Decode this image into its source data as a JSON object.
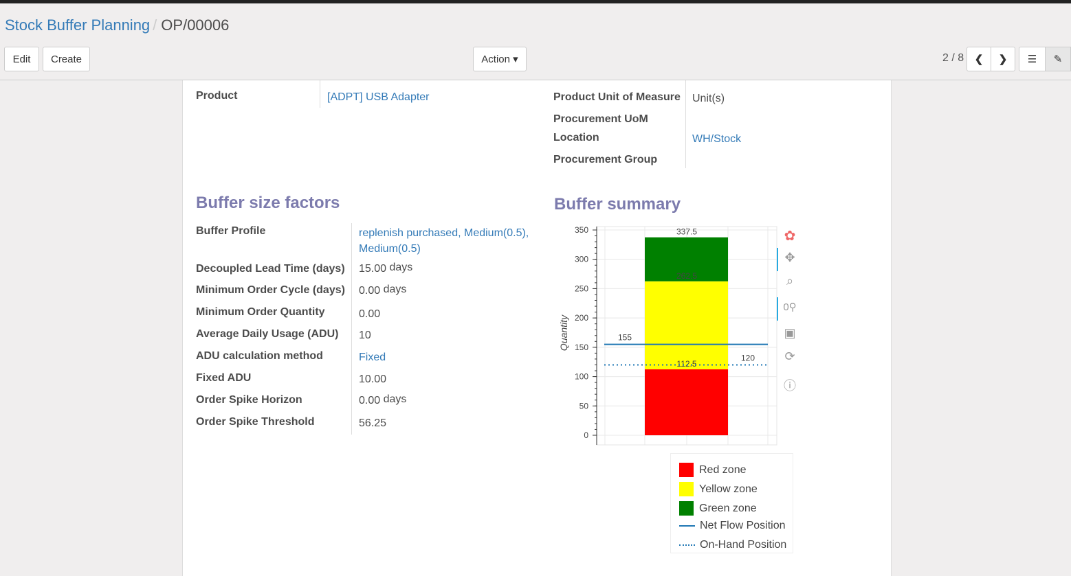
{
  "breadcrumb": {
    "parent": "Stock Buffer Planning",
    "current": "OP/00006"
  },
  "toolbar": {
    "edit": "Edit",
    "create": "Create",
    "action": "Action ▾",
    "pager": "2 / 8"
  },
  "header_fields": {
    "product_label": "Product",
    "product_value": "[ADPT] USB Adapter",
    "uom_label": "Product Unit of Measure",
    "uom_value": "Unit(s)",
    "proc_uom_label": "Procurement UoM",
    "location_label": "Location",
    "location_value": "WH/Stock",
    "proc_group_label": "Procurement Group"
  },
  "factors": {
    "title": "Buffer size factors",
    "rows": [
      {
        "label": "Buffer Profile",
        "value": "replenish purchased, Medium(0.5),",
        "value2": "Medium(0.5)"
      },
      {
        "label": "Decoupled Lead Time (days)",
        "value": "15.00",
        "unit": "days"
      },
      {
        "label": "Minimum Order Cycle (days)",
        "value": "0.00",
        "unit": "days"
      },
      {
        "label": "Minimum Order Quantity",
        "value": "0.00"
      },
      {
        "label": "Average Daily Usage (ADU)",
        "value": "10"
      },
      {
        "label": "ADU calculation method",
        "value": "Fixed"
      },
      {
        "label": "Fixed ADU",
        "value": "10.00"
      },
      {
        "label": "Order Spike Horizon",
        "value": "0.00",
        "unit": "days"
      },
      {
        "label": "Order Spike Threshold",
        "value": "56.25"
      }
    ]
  },
  "summary": {
    "title": "Buffer summary"
  },
  "chart_data": {
    "type": "bar",
    "stacked": true,
    "ylabel": "Quantity",
    "ylim": [
      0,
      350
    ],
    "yticks": [
      "0",
      "50",
      "100",
      "150",
      "200",
      "250",
      "300",
      "350"
    ],
    "zones": [
      {
        "name": "Red zone",
        "from": 0,
        "to": 112.5,
        "color": "#ff0000",
        "label": "112.5"
      },
      {
        "name": "Yellow zone",
        "from": 112.5,
        "to": 262.5,
        "color": "#ffff00",
        "label": "262.5"
      },
      {
        "name": "Green zone",
        "from": 262.5,
        "to": 337.5,
        "color": "#008000",
        "label": "337.5"
      }
    ],
    "lines": [
      {
        "name": "Net Flow Position",
        "value": 155,
        "label": "155",
        "style": "solid",
        "color": "#1f77b4"
      },
      {
        "name": "On-Hand Position",
        "value": 120,
        "label": "120",
        "style": "dotted",
        "color": "#1f77b4"
      }
    ],
    "grid": true,
    "legend": "bottom-right"
  }
}
